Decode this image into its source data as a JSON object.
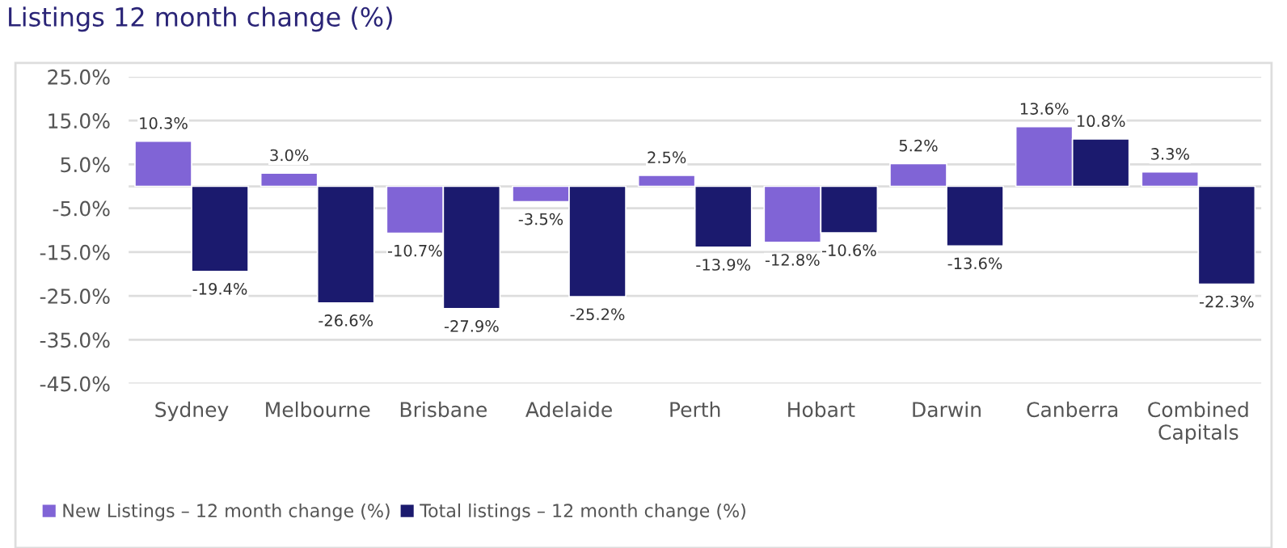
{
  "chart_data": {
    "type": "bar",
    "title": "Listings 12 month change (%)",
    "categories": [
      "Sydney",
      "Melbourne",
      "Brisbane",
      "Adelaide",
      "Perth",
      "Hobart",
      "Darwin",
      "Canberra",
      "Combined Capitals"
    ],
    "series": [
      {
        "name": "New Listings – 12 month change (%)",
        "color": "#8064d6",
        "values": [
          10.3,
          3.0,
          -10.7,
          -3.5,
          2.5,
          -12.8,
          5.2,
          13.6,
          3.3
        ],
        "value_labels": [
          "10.3%",
          "3.0%",
          "-10.7%",
          "-3.5%",
          "2.5%",
          "-12.8%",
          "5.2%",
          "13.6%",
          "3.3%"
        ]
      },
      {
        "name": "Total listings – 12 month change (%)",
        "color": "#1b1a6e",
        "values": [
          -19.4,
          -26.6,
          -27.9,
          -25.2,
          -13.9,
          -10.6,
          -13.6,
          10.8,
          -22.3
        ],
        "value_labels": [
          "-19.4%",
          "-26.6%",
          "-27.9%",
          "-25.2%",
          "-13.9%",
          "-10.6%",
          "-13.6%",
          "10.8%",
          "-22.3%"
        ]
      }
    ],
    "ylim": [
      -45,
      25
    ],
    "yticks": [
      {
        "value": 25,
        "label": "25.0%"
      },
      {
        "value": 15,
        "label": "15.0%"
      },
      {
        "value": 5,
        "label": "5.0%"
      },
      {
        "value": -5,
        "label": "-5.0%"
      },
      {
        "value": -15,
        "label": "-15.0%"
      },
      {
        "value": -25,
        "label": "-25.0%"
      },
      {
        "value": -35,
        "label": "-35.0%"
      },
      {
        "value": -45,
        "label": "-45.0%"
      }
    ],
    "grid": "y",
    "legend": "bottom left"
  }
}
